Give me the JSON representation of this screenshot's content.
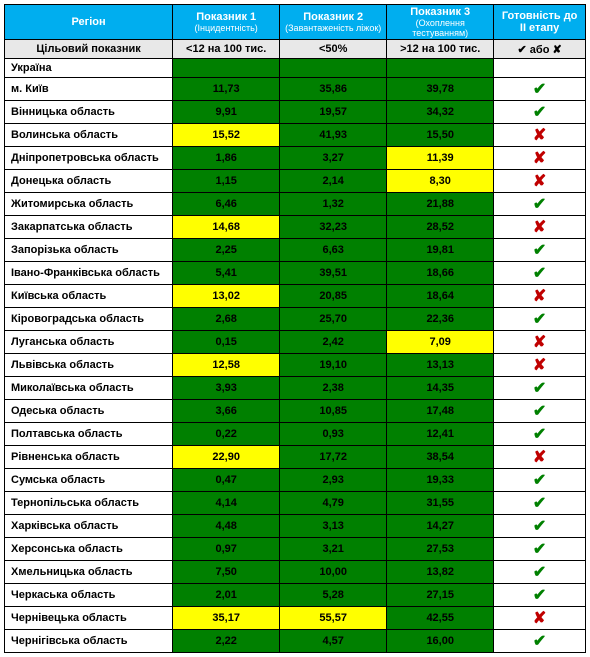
{
  "header": {
    "region": "Регіон",
    "ind1_title": "Показник 1",
    "ind1_sub": "(Інцидентність)",
    "ind2_title": "Показник 2",
    "ind2_sub": "(Завантаженість ліжок)",
    "ind3_title": "Показник 3",
    "ind3_sub": "(Охоплення тестуванням)",
    "ready_title": "Готовність до ІІ етапу"
  },
  "target": {
    "label": "Цільовий показник",
    "ind1": "<12 на 100 тис.",
    "ind2": "<50%",
    "ind3": ">12 на 100 тис.",
    "ready": "✔ або ✘"
  },
  "colors": {
    "green": "#008000",
    "yellow": "#ffff00",
    "header_bg": "#00aeef",
    "ok": "#008000",
    "no": "#c00000"
  },
  "glyphs": {
    "ok": "✔",
    "no": "✘"
  },
  "rows": [
    {
      "region": "Україна",
      "ind1": "",
      "c1": "green",
      "ind2": "",
      "c2": "green",
      "ind3": "",
      "c3": "green",
      "ready": ""
    },
    {
      "region": "м. Київ",
      "ind1": "11,73",
      "c1": "green",
      "ind2": "35,86",
      "c2": "green",
      "ind3": "39,78",
      "c3": "green",
      "ready": "ok"
    },
    {
      "region": "Вінницька область",
      "ind1": "9,91",
      "c1": "green",
      "ind2": "19,57",
      "c2": "green",
      "ind3": "34,32",
      "c3": "green",
      "ready": "ok"
    },
    {
      "region": "Волинська область",
      "ind1": "15,52",
      "c1": "yellow",
      "ind2": "41,93",
      "c2": "green",
      "ind3": "15,50",
      "c3": "green",
      "ready": "no"
    },
    {
      "region": "Дніпропетровська область",
      "ind1": "1,86",
      "c1": "green",
      "ind2": "3,27",
      "c2": "green",
      "ind3": "11,39",
      "c3": "yellow",
      "ready": "no"
    },
    {
      "region": "Донецька область",
      "ind1": "1,15",
      "c1": "green",
      "ind2": "2,14",
      "c2": "green",
      "ind3": "8,30",
      "c3": "yellow",
      "ready": "no"
    },
    {
      "region": "Житомирська область",
      "ind1": "6,46",
      "c1": "green",
      "ind2": "1,32",
      "c2": "green",
      "ind3": "21,88",
      "c3": "green",
      "ready": "ok"
    },
    {
      "region": "Закарпатська область",
      "ind1": "14,68",
      "c1": "yellow",
      "ind2": "32,23",
      "c2": "green",
      "ind3": "28,52",
      "c3": "green",
      "ready": "no"
    },
    {
      "region": "Запорізька область",
      "ind1": "2,25",
      "c1": "green",
      "ind2": "6,63",
      "c2": "green",
      "ind3": "19,81",
      "c3": "green",
      "ready": "ok"
    },
    {
      "region": "Івано-Франківська область",
      "ind1": "5,41",
      "c1": "green",
      "ind2": "39,51",
      "c2": "green",
      "ind3": "18,66",
      "c3": "green",
      "ready": "ok"
    },
    {
      "region": "Київська область",
      "ind1": "13,02",
      "c1": "yellow",
      "ind2": "20,85",
      "c2": "green",
      "ind3": "18,64",
      "c3": "green",
      "ready": "no"
    },
    {
      "region": "Кіровоградська область",
      "ind1": "2,68",
      "c1": "green",
      "ind2": "25,70",
      "c2": "green",
      "ind3": "22,36",
      "c3": "green",
      "ready": "ok"
    },
    {
      "region": "Луганська область",
      "ind1": "0,15",
      "c1": "green",
      "ind2": "2,42",
      "c2": "green",
      "ind3": "7,09",
      "c3": "yellow",
      "ready": "no"
    },
    {
      "region": "Львівська область",
      "ind1": "12,58",
      "c1": "yellow",
      "ind2": "19,10",
      "c2": "green",
      "ind3": "13,13",
      "c3": "green",
      "ready": "no"
    },
    {
      "region": "Миколаївська область",
      "ind1": "3,93",
      "c1": "green",
      "ind2": "2,38",
      "c2": "green",
      "ind3": "14,35",
      "c3": "green",
      "ready": "ok"
    },
    {
      "region": "Одеська область",
      "ind1": "3,66",
      "c1": "green",
      "ind2": "10,85",
      "c2": "green",
      "ind3": "17,48",
      "c3": "green",
      "ready": "ok"
    },
    {
      "region": "Полтавська область",
      "ind1": "0,22",
      "c1": "green",
      "ind2": "0,93",
      "c2": "green",
      "ind3": "12,41",
      "c3": "green",
      "ready": "ok"
    },
    {
      "region": "Рівненська область",
      "ind1": "22,90",
      "c1": "yellow",
      "ind2": "17,72",
      "c2": "green",
      "ind3": "38,54",
      "c3": "green",
      "ready": "no"
    },
    {
      "region": "Сумська область",
      "ind1": "0,47",
      "c1": "green",
      "ind2": "2,93",
      "c2": "green",
      "ind3": "19,33",
      "c3": "green",
      "ready": "ok"
    },
    {
      "region": "Тернопільська область",
      "ind1": "4,14",
      "c1": "green",
      "ind2": "4,79",
      "c2": "green",
      "ind3": "31,55",
      "c3": "green",
      "ready": "ok"
    },
    {
      "region": "Харківська область",
      "ind1": "4,48",
      "c1": "green",
      "ind2": "3,13",
      "c2": "green",
      "ind3": "14,27",
      "c3": "green",
      "ready": "ok"
    },
    {
      "region": "Херсонська область",
      "ind1": "0,97",
      "c1": "green",
      "ind2": "3,21",
      "c2": "green",
      "ind3": "27,53",
      "c3": "green",
      "ready": "ok"
    },
    {
      "region": "Хмельницька область",
      "ind1": "7,50",
      "c1": "green",
      "ind2": "10,00",
      "c2": "green",
      "ind3": "13,82",
      "c3": "green",
      "ready": "ok"
    },
    {
      "region": "Черкаська область",
      "ind1": "2,01",
      "c1": "green",
      "ind2": "5,28",
      "c2": "green",
      "ind3": "27,15",
      "c3": "green",
      "ready": "ok"
    },
    {
      "region": "Чернівецька область",
      "ind1": "35,17",
      "c1": "yellow",
      "ind2": "55,57",
      "c2": "yellow",
      "ind3": "42,55",
      "c3": "green",
      "ready": "no"
    },
    {
      "region": "Чернігівська область",
      "ind1": "2,22",
      "c1": "green",
      "ind2": "4,57",
      "c2": "green",
      "ind3": "16,00",
      "c3": "green",
      "ready": "ok"
    }
  ]
}
